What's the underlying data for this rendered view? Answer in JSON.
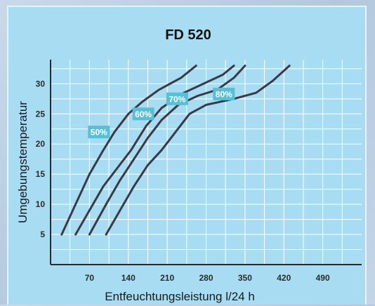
{
  "chart_data": {
    "type": "line",
    "title": "FD 520",
    "xlabel": "Entfeuchtungsleistung l/24 h",
    "ylabel": "Umgebungstemperatur",
    "xlim": [
      0,
      560
    ],
    "ylim": [
      0,
      34
    ],
    "x_ticks": [
      70,
      140,
      210,
      280,
      350,
      420,
      490
    ],
    "y_ticks": [
      5,
      10,
      15,
      20,
      25,
      30
    ],
    "grid": true,
    "series": [
      {
        "name": "50%",
        "points": [
          [
            20,
            5
          ],
          [
            45,
            10
          ],
          [
            70,
            15
          ],
          [
            95,
            19
          ],
          [
            115,
            22
          ],
          [
            140,
            25
          ],
          [
            165,
            27
          ],
          [
            195,
            29
          ],
          [
            235,
            31
          ],
          [
            262,
            33
          ]
        ]
      },
      {
        "name": "60%",
        "points": [
          [
            45,
            5
          ],
          [
            70,
            9
          ],
          [
            95,
            13
          ],
          [
            120,
            16
          ],
          [
            145,
            19
          ],
          [
            172,
            23
          ],
          [
            200,
            26
          ],
          [
            240,
            28.5
          ],
          [
            275,
            30
          ],
          [
            310,
            31.5
          ],
          [
            330,
            33
          ]
        ]
      },
      {
        "name": "70%",
        "points": [
          [
            70,
            5
          ],
          [
            100,
            10
          ],
          [
            125,
            14
          ],
          [
            150,
            17.5
          ],
          [
            175,
            21
          ],
          [
            200,
            24
          ],
          [
            230,
            26.5
          ],
          [
            265,
            28
          ],
          [
            300,
            29
          ],
          [
            330,
            31
          ],
          [
            350,
            33
          ]
        ]
      },
      {
        "name": "80%",
        "points": [
          [
            100,
            5
          ],
          [
            125,
            9
          ],
          [
            150,
            13
          ],
          [
            175,
            16.5
          ],
          [
            200,
            19
          ],
          [
            225,
            22
          ],
          [
            250,
            25
          ],
          [
            280,
            26.5
          ],
          [
            330,
            27.5
          ],
          [
            370,
            28.5
          ],
          [
            400,
            30.5
          ],
          [
            430,
            33
          ]
        ]
      }
    ],
    "annotations": [
      {
        "text": "50%",
        "x": 87,
        "y": 22
      },
      {
        "text": "60%",
        "x": 167,
        "y": 25
      },
      {
        "text": "70%",
        "x": 228,
        "y": 27.5
      },
      {
        "text": "80%",
        "x": 312,
        "y": 28.3
      }
    ]
  },
  "style": {
    "panel_bg": "#a8dcf3",
    "grid_color": "#ffffff",
    "line_color": "#3a3a46",
    "badge_color": "#58c0d6"
  }
}
